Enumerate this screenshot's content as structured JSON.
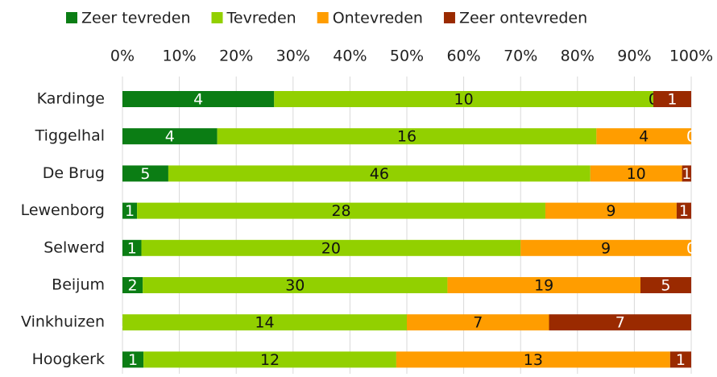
{
  "chart_data": {
    "type": "stacked-barh-percent",
    "categories": [
      "Kardinge",
      "Tiggelhal",
      "De Brug",
      "Lewenborg",
      "Selwerd",
      "Beijum",
      "Vinkhuizen",
      "Hoogkerk"
    ],
    "series": [
      {
        "name": "Zeer tevreden",
        "color": "#0b7d14",
        "values": [
          4,
          4,
          5,
          1,
          1,
          2,
          0,
          1
        ]
      },
      {
        "name": "Tevreden",
        "color": "#92d000",
        "values": [
          10,
          16,
          46,
          28,
          20,
          30,
          14,
          12
        ]
      },
      {
        "name": "Ontevreden",
        "color": "#ff9d00",
        "values": [
          0,
          4,
          10,
          9,
          9,
          19,
          7,
          13
        ]
      },
      {
        "name": "Zeer ontevreden",
        "color": "#9a2a00",
        "values": [
          1,
          0,
          1,
          1,
          0,
          5,
          7,
          1
        ]
      }
    ],
    "xlim": [
      0,
      100
    ],
    "xticks": [
      {
        "value": 0,
        "label": "0%"
      },
      {
        "value": 10,
        "label": "10%"
      },
      {
        "value": 20,
        "label": "20%"
      },
      {
        "value": 30,
        "label": "30%"
      },
      {
        "value": 40,
        "label": "40%"
      },
      {
        "value": 50,
        "label": "50%"
      },
      {
        "value": 60,
        "label": "60%"
      },
      {
        "value": 70,
        "label": "70%"
      },
      {
        "value": 80,
        "label": "80%"
      },
      {
        "value": 90,
        "label": "90%"
      },
      {
        "value": 100,
        "label": "100%"
      }
    ],
    "grid": true,
    "legend": "top"
  }
}
